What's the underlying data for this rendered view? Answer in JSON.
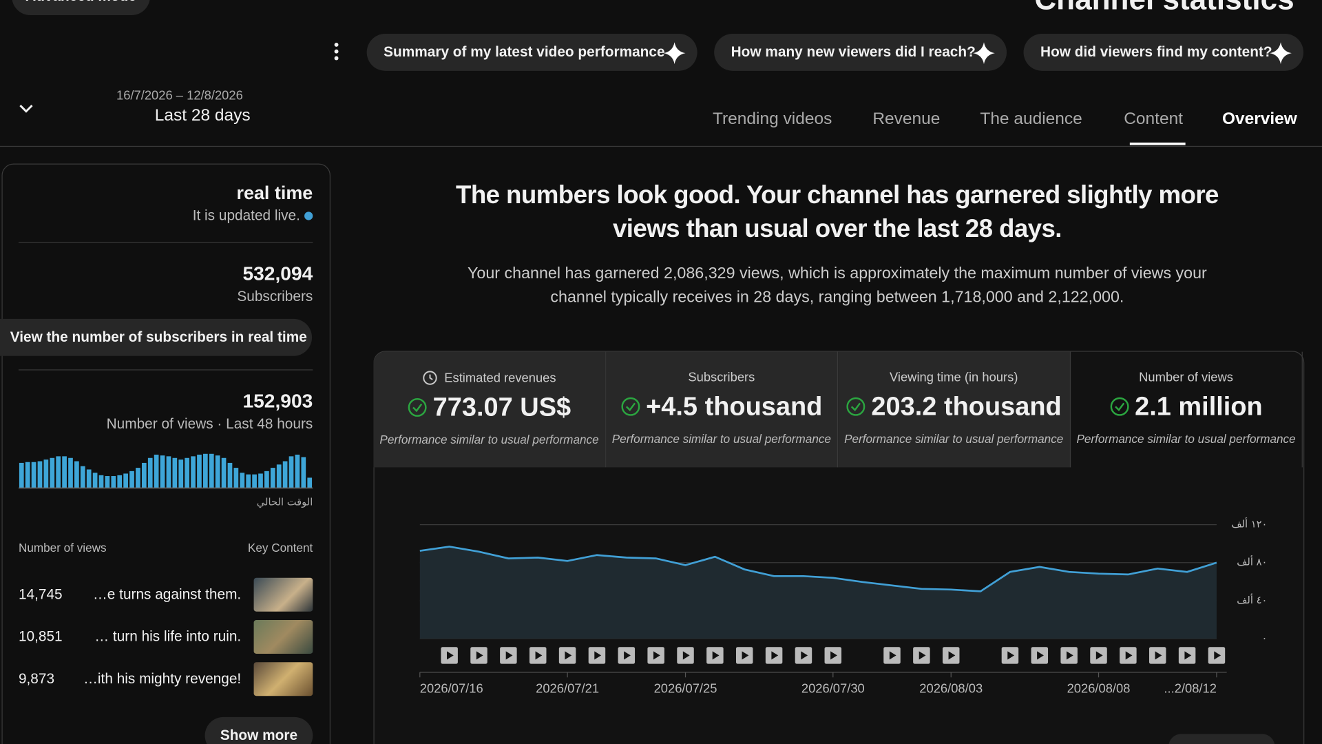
{
  "header": {
    "title": "Channel statistics",
    "advanced_mode": "Advanced mode",
    "date_range": "16/7/2026 – 12/8/2026",
    "period": "Last 28 days"
  },
  "suggestions": [
    "Summary of my latest video performance",
    "How many new viewers did I reach?",
    "How did viewers find my content?"
  ],
  "tabs": [
    "Trending videos",
    "Revenue",
    "The audience",
    "Content",
    "Overview"
  ],
  "realtime": {
    "title": "real time",
    "status": "It is updated live.",
    "subscribers": "532,094",
    "subscribers_label": "Subscribers",
    "button": "View the number of subscribers in real time",
    "views": "152,903",
    "views_label": "Number of views · Last 48 hours",
    "sparkline": [
      30,
      31,
      31,
      32,
      34,
      36,
      38,
      38,
      36,
      32,
      26,
      22,
      18,
      15,
      14,
      14,
      15,
      17,
      20,
      24,
      30,
      36,
      40,
      39,
      38,
      36,
      34,
      36,
      38,
      40,
      41,
      41,
      39,
      36,
      30,
      24,
      18,
      16,
      16,
      17,
      20,
      24,
      28,
      32,
      38,
      40,
      37,
      12
    ],
    "sparkline_label": "الوقت الحالي",
    "col_views": "Number of views",
    "col_content": "Key Content",
    "rows": [
      [
        "14,745",
        "…e turns against them."
      ],
      [
        "10,851",
        "… turn his life into ruin."
      ],
      [
        "9,873",
        "…ith his mighty revenge!"
      ]
    ],
    "show_more": "Show more"
  },
  "summary": {
    "headline": "The numbers look good. Your channel has garnered slightly more views than usual over the last 28 days.",
    "body": "Your channel has garnered 2,086,329 views, which is approximately the maximum number of views your channel typically receives in 28 days, ranging between 1,718,000 and 2,122,000."
  },
  "metrics": [
    {
      "label": "Estimated revenues",
      "value": "773.07 US$",
      "note": "Performance similar to usual performance"
    },
    {
      "label": "Subscribers",
      "value": "+4.5 thousand",
      "note": "Performance similar to usual performance"
    },
    {
      "label": "Viewing time (in hours)",
      "value": "203.2 thousand",
      "note": "Performance similar to usual performance"
    },
    {
      "label": "Number of views",
      "value": "2.1 million",
      "note": "Performance similar to usual performance"
    }
  ],
  "chart_data": {
    "type": "area",
    "color": "#41a0d6",
    "categories": [
      "2026/07/16",
      null,
      null,
      null,
      null,
      "2026/07/21",
      null,
      null,
      null,
      "2026/07/25",
      null,
      null,
      null,
      null,
      "2026/07/30",
      null,
      null,
      null,
      "2026/08/03",
      null,
      null,
      null,
      null,
      "2026/08/08",
      null,
      null,
      null,
      "...2/08/12"
    ],
    "values": [
      92.4,
      96.9,
      91.6,
      84.4,
      85.3,
      81.8,
      88,
      85.3,
      84.4,
      77.3,
      86.2,
      72.9,
      65.8,
      65.8,
      64,
      59.6,
      56,
      52.4,
      51.6,
      49.8,
      70.2,
      75.6,
      70.2,
      68.4,
      67.6,
      73.8,
      70.2,
      80
    ],
    "ylim": [
      0,
      120
    ],
    "yticks": [
      {
        "value": 0,
        "label": "٠"
      },
      {
        "value": 40,
        "label": "٤٠ ألف"
      },
      {
        "value": 80,
        "label": "٨٠ ألف"
      },
      {
        "value": 120,
        "label": "١٢٠ ألف"
      }
    ],
    "grid": true
  }
}
